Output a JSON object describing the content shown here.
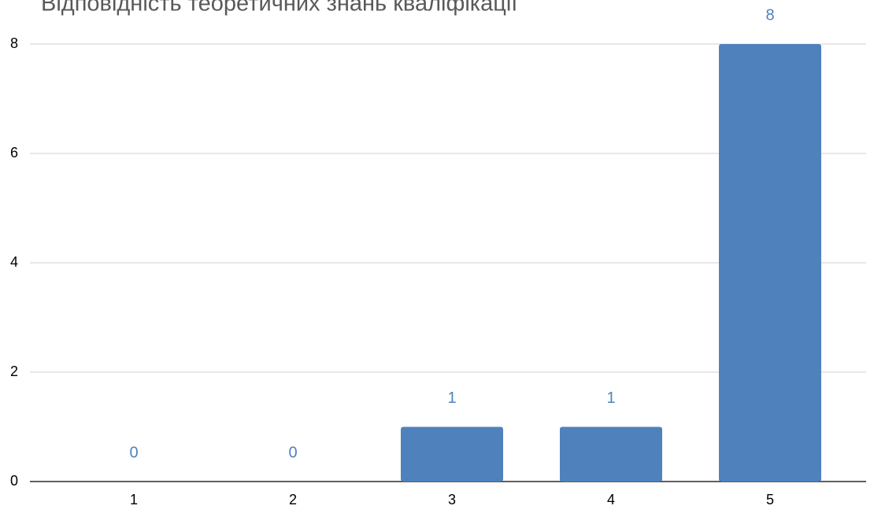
{
  "chart_data": {
    "type": "bar",
    "title": "Відповідність теоретичних знань кваліфікації",
    "categories": [
      "1",
      "2",
      "3",
      "4",
      "5"
    ],
    "values": [
      0,
      0,
      1,
      1,
      8
    ],
    "color": "#4f81bd",
    "ylim": [
      0,
      8
    ],
    "yticks": [
      0,
      2,
      4,
      6,
      8
    ],
    "grid": true
  }
}
